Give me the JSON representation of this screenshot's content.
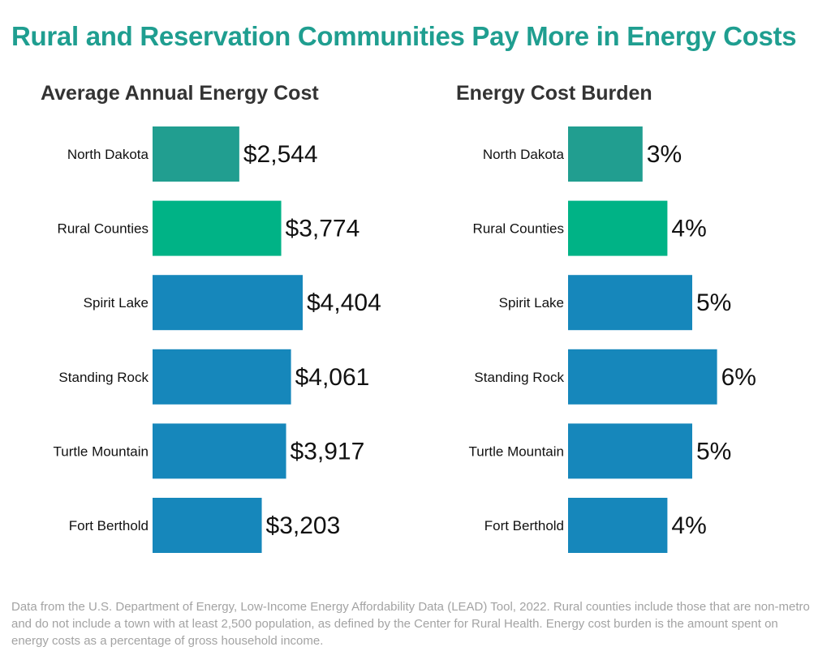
{
  "title": "Rural and Reservation Communities Pay More in Energy Costs",
  "colors": {
    "title": "#1f9e90",
    "north_dakota": "#219e90",
    "rural": "#00b386",
    "reservation": "#1687bb"
  },
  "chart_data": [
    {
      "type": "bar",
      "orientation": "horizontal",
      "title": "Average Annual Energy Cost",
      "categories": [
        "North Dakota",
        "Rural Counties",
        "Spirit Lake",
        "Standing Rock",
        "Turtle Mountain",
        "Fort Berthold"
      ],
      "values": [
        2544,
        3774,
        4404,
        4061,
        3917,
        3203
      ],
      "value_labels": [
        "$2,544",
        "$3,774",
        "$4,404",
        "$4,061",
        "$3,917",
        "$3,203"
      ],
      "bar_colors": [
        "#219e90",
        "#00b386",
        "#1687bb",
        "#1687bb",
        "#1687bb",
        "#1687bb"
      ],
      "xlim": [
        0,
        4404
      ],
      "grid": false
    },
    {
      "type": "bar",
      "orientation": "horizontal",
      "title": "Energy Cost Burden",
      "categories": [
        "North Dakota",
        "Rural Counties",
        "Spirit Lake",
        "Standing Rock",
        "Turtle Mountain",
        "Fort Berthold"
      ],
      "values": [
        3,
        4,
        5,
        6,
        5,
        4
      ],
      "value_labels": [
        "3%",
        "4%",
        "5%",
        "6%",
        "5%",
        "4%"
      ],
      "bar_colors": [
        "#219e90",
        "#00b386",
        "#1687bb",
        "#1687bb",
        "#1687bb",
        "#1687bb"
      ],
      "grid": false
    }
  ],
  "footnote": "Data from the U.S. Department of Energy, Low-Income Energy Affordability Data (LEAD) Tool, 2022. Rural counties include those that are non-metro and do not include a town with at least 2,500 population, as defined by the Center for Rural Health. Energy cost burden is the amount spent on energy costs as a percentage of gross household income."
}
